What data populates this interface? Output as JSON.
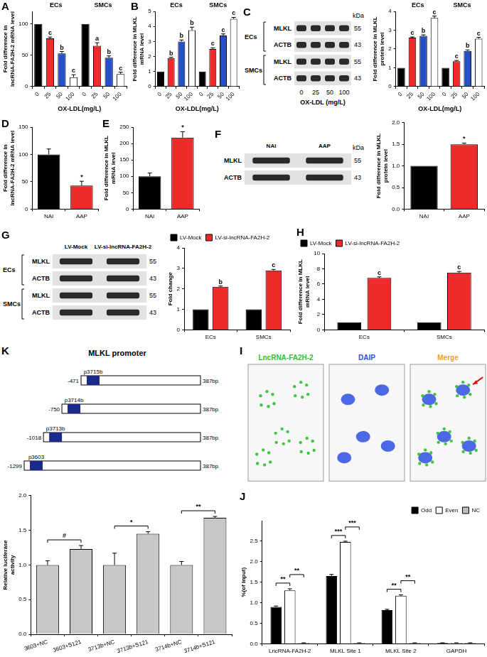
{
  "chart_data": [
    {
      "panel": "A",
      "type": "bar",
      "y_label": "Fold difference in lncRNA-FA2H-2 mRNA level",
      "x_label": "OX-LDL(mg/L)",
      "groups": [
        "ECs",
        "SMCs"
      ],
      "categories": [
        "0",
        "25",
        "50",
        "100",
        "0",
        "25",
        "50",
        "100"
      ],
      "values": [
        100,
        77,
        53,
        15,
        100,
        65,
        46,
        20
      ],
      "errors": [
        0,
        2,
        3,
        4,
        0,
        5,
        3,
        3
      ],
      "significance": [
        null,
        "c",
        "b",
        "c",
        null,
        "a",
        "b",
        "c"
      ],
      "colors": [
        "#000000",
        "#ee2b2b",
        "#2550c8",
        "#ffffff",
        "#000000",
        "#ee2b2b",
        "#2550c8",
        "#ffffff"
      ],
      "ylim": [
        0,
        120
      ],
      "yticks": [
        0,
        50,
        100
      ],
      "grid": false
    },
    {
      "panel": "B",
      "type": "bar",
      "y_label": "Fold difference in MLKL mRNA level",
      "x_label": "OX-LDL(mg/L)",
      "groups": [
        "ECs",
        "SMCs"
      ],
      "categories": [
        "0",
        "25",
        "50",
        "100",
        "0",
        "25",
        "50",
        "100"
      ],
      "values": [
        1,
        1.9,
        3,
        3.75,
        1,
        2.5,
        3.4,
        4.5
      ],
      "errors": [
        0,
        0.05,
        0.1,
        0.2,
        0,
        0.08,
        0.1,
        0.1
      ],
      "significance": [
        null,
        "b",
        "b",
        "b",
        null,
        "c",
        "c",
        "c"
      ],
      "colors": [
        "#000000",
        "#ee2b2b",
        "#2550c8",
        "#ffffff",
        "#000000",
        "#ee2b2b",
        "#2550c8",
        "#ffffff"
      ],
      "ylim": [
        0,
        5
      ],
      "yticks": [
        0,
        1,
        2,
        3,
        4,
        5
      ],
      "grid": false
    },
    {
      "type": "bar",
      "y_label": "Fold difference in MLKL protein level",
      "x_label": "OX-LDL(mg/L)",
      "groups": [
        "ECs",
        "SMCs"
      ],
      "categories": [
        "0",
        "25",
        "50",
        "100",
        "0",
        "25",
        "50",
        "100"
      ],
      "values": [
        1,
        2.6,
        2.7,
        3.65,
        1,
        1.35,
        1.9,
        2.55
      ],
      "errors": [
        0,
        0.04,
        0.05,
        0.1,
        0,
        0.04,
        0.05,
        0.07
      ],
      "significance": [
        null,
        "c",
        "b",
        "c",
        null,
        "c",
        "b",
        "c"
      ],
      "colors": [
        "#000000",
        "#ee2b2b",
        "#2550c8",
        "#ffffff",
        "#000000",
        "#ee2b2b",
        "#2550c8",
        "#ffffff"
      ],
      "ylim": [
        0,
        4
      ],
      "yticks": [
        0,
        1,
        2,
        3,
        4
      ],
      "grid": false
    },
    {
      "panel": "D",
      "type": "bar",
      "y_label": "Fold difference in lncRNA-FA2H-2 mRNA level",
      "categories": [
        "NAI",
        "AAP"
      ],
      "values": [
        100,
        43
      ],
      "errors": [
        10,
        8
      ],
      "significance": [
        null,
        "*"
      ],
      "colors": [
        "#000000",
        "#ee2b2b"
      ],
      "ylim": [
        0,
        150
      ],
      "yticks": [
        0,
        50,
        100,
        150
      ],
      "grid": false
    },
    {
      "panel": "E",
      "type": "bar",
      "y_label": "Fold difference in MLKL mRNA level",
      "categories": [
        "NAI",
        "AAP"
      ],
      "values": [
        100,
        218
      ],
      "errors": [
        10,
        18
      ],
      "significance": [
        null,
        "*"
      ],
      "colors": [
        "#000000",
        "#ee2b2b"
      ],
      "ylim": [
        0,
        250
      ],
      "yticks": [
        0,
        50,
        100,
        150,
        200,
        250
      ],
      "grid": false
    },
    {
      "type": "bar",
      "y_label": "Fold difference in MLKL protein level",
      "categories": [
        "NAI",
        "AAP"
      ],
      "values": [
        1,
        1.5
      ],
      "errors": [
        0,
        0.03
      ],
      "significance": [
        null,
        "*"
      ],
      "colors": [
        "#000000",
        "#ee2b2b"
      ],
      "ylim": [
        0,
        2
      ],
      "yticks": [
        {
          "value": 0,
          "label": "0.0"
        },
        {
          "value": 0.5,
          "label": "0.5"
        },
        {
          "value": 1,
          "label": "1.0"
        },
        {
          "value": 1.5,
          "label": "1.5"
        },
        {
          "value": 2,
          "label": "2.0"
        }
      ],
      "grid": false
    },
    {
      "type": "bar",
      "y_label": "Fold change",
      "categories": [
        "ECs",
        "SMCs"
      ],
      "series": [
        {
          "name": "LV-Mock",
          "color": "#000000",
          "values": [
            1,
            1
          ],
          "errors": [
            0,
            0
          ],
          "significance": [
            null,
            null
          ]
        },
        {
          "name": "LV-si-lncRNA-FA2H-2",
          "color": "#ee2b2b",
          "values": [
            2.1,
            2.9
          ],
          "errors": [
            0.04,
            0.05
          ],
          "significance": [
            "b",
            "c"
          ]
        }
      ],
      "legend": "top-left",
      "ylim": [
        0,
        4
      ],
      "yticks": [
        0,
        1,
        2,
        3,
        4
      ],
      "grid": false
    },
    {
      "panel": "H",
      "type": "bar",
      "y_label": "Fold difference in MLKL mRNA level",
      "categories": [
        "ECs",
        "SMCs"
      ],
      "series": [
        {
          "name": "LV-Mock",
          "color": "#000000",
          "values": [
            1,
            1
          ],
          "errors": [
            0,
            0
          ],
          "significance": [
            null,
            null
          ]
        },
        {
          "name": "LV-si-lncRNA-FA2H-2",
          "color": "#ee2b2b",
          "values": [
            6.8,
            7.5
          ],
          "errors": [
            0.15,
            0.15
          ],
          "significance": [
            "c",
            "c"
          ]
        }
      ],
      "legend": "top-left",
      "ylim": [
        0,
        10
      ],
      "yticks": [
        0,
        2,
        4,
        6,
        8,
        10
      ],
      "grid": false
    },
    {
      "type": "bar",
      "y_label": "Relative luciferase activity",
      "categories": [
        "3603+NC",
        "3603+S121",
        "3713b+NC",
        "3713b+S121",
        "3714b+NC",
        "3714b+S121"
      ],
      "values": [
        1,
        1.23,
        1,
        1.45,
        1,
        1.68
      ],
      "errors": [
        0.06,
        0.05,
        0.17,
        0.03,
        0.05,
        0.02
      ],
      "color": "#c8c8c8",
      "brackets": [
        {
          "between": [
            "3603+NC",
            "3603+S121"
          ],
          "label": "#"
        },
        {
          "between": [
            "3713b+NC",
            "3713b+S121"
          ],
          "label": "*"
        },
        {
          "between": [
            "3714b+NC",
            "3714b+S121"
          ],
          "label": "**"
        }
      ],
      "ylim": [
        0,
        2
      ],
      "yticks": [
        {
          "value": 0,
          "label": "0.0"
        },
        {
          "value": 0.5,
          "label": "0.5"
        },
        {
          "value": 1,
          "label": "1.0"
        },
        {
          "value": 1.5,
          "label": "1.5"
        },
        {
          "value": 2,
          "label": "2.0"
        }
      ],
      "grid": false
    },
    {
      "panel": "J",
      "type": "bar",
      "y_label": "%(of input)",
      "categories": [
        "LncRNA-FA2H-2",
        "MLKL Site 1",
        "MLKL Site 2",
        "GAPDH"
      ],
      "series": [
        {
          "name": "Odd",
          "color": "#000000",
          "values": [
            0.9,
            1.65,
            0.82,
            0.02
          ],
          "errors": [
            0.02,
            0.04,
            0.02,
            0.005
          ]
        },
        {
          "name": "Even",
          "color": "#ffffff",
          "values": [
            1.3,
            2.48,
            1.17,
            0.02
          ],
          "errors": [
            0.04,
            0.02,
            0.02,
            0.005
          ]
        },
        {
          "name": "NC",
          "color": "#bdbdbd",
          "values": [
            0.02,
            0.02,
            0.02,
            0.02
          ],
          "errors": [
            0.005,
            0.005,
            0.005,
            0.005
          ]
        }
      ],
      "brackets": [
        {
          "category": "LncRNA-FA2H-2",
          "between": [
            "Odd",
            "Even"
          ],
          "label": "**"
        },
        {
          "category": "LncRNA-FA2H-2",
          "between": [
            "Even",
            "NC"
          ],
          "label": "**"
        },
        {
          "category": "MLKL Site 1",
          "between": [
            "Odd",
            "Even"
          ],
          "label": "***"
        },
        {
          "category": "MLKL Site 1",
          "between": [
            "Even",
            "NC"
          ],
          "label": "***"
        },
        {
          "category": "MLKL Site 2",
          "between": [
            "Odd",
            "Even"
          ],
          "label": "**"
        },
        {
          "category": "MLKL Site 2",
          "between": [
            "Even",
            "NC"
          ],
          "label": "**"
        }
      ],
      "legend": "top-right",
      "ylim": [
        0,
        3
      ],
      "yticks": [
        {
          "value": 0,
          "label": "0.0"
        },
        {
          "value": 0.5,
          "label": "0.5"
        },
        {
          "value": 1,
          "label": "1.0"
        },
        {
          "value": 1.5,
          "label": "1.5"
        },
        {
          "value": 2,
          "label": "2.0"
        },
        {
          "value": 2.5,
          "label": "2.5"
        }
      ],
      "grid": false
    }
  ],
  "blots": [
    {
      "panel": "C",
      "unit": "kDa",
      "lanes": [
        "0",
        "25",
        "50",
        "100"
      ],
      "lane_title": "OX-LDL (mg/L)",
      "rows": [
        {
          "group": "ECs",
          "band": "MLKL",
          "kda": 55
        },
        {
          "group": "ECs",
          "band": "ACTB",
          "kda": 43
        },
        {
          "group": "SMCs",
          "band": "MLKL",
          "kda": 55
        },
        {
          "group": "SMCs",
          "band": "ACTB",
          "kda": 43
        }
      ]
    },
    {
      "panel": "F",
      "unit": "kDa",
      "lanes": [
        "NAI",
        "AAP"
      ],
      "rows": [
        {
          "band": "MLKL",
          "kda": 55
        },
        {
          "band": "ACTB",
          "kda": 43
        }
      ]
    },
    {
      "panel": "G",
      "lanes": [
        "LV-Mock",
        "LV-si-lncRNA-FA2H-2"
      ],
      "rows": [
        {
          "group": "ECs",
          "band": "MLKL",
          "kda": 55
        },
        {
          "group": "ECs",
          "band": "ACTB",
          "kda": 43
        },
        {
          "group": "SMCs",
          "band": "MLKL",
          "kda": 55
        },
        {
          "group": "SMCs",
          "band": "ACTB",
          "kda": 43
        }
      ]
    }
  ],
  "promoter_diagram": {
    "panel": "K",
    "title": "MLKL promoter",
    "constructs": [
      {
        "name": "p3715b",
        "start": -471,
        "end_label": "387bp"
      },
      {
        "name": "p3714b",
        "start": -750,
        "end_label": "387bp"
      },
      {
        "name": "p3713b",
        "start": -1018,
        "end_label": "387bp"
      },
      {
        "name": "p3603",
        "start": -1299,
        "end_label": "387bp"
      }
    ]
  },
  "microscopy": {
    "panel": "I",
    "channels": [
      "LncRNA-FA2H-2",
      "DAIP",
      "Merge"
    ],
    "colors": [
      "#2fbf2f",
      "#2f4fe0",
      "#f0a030"
    ]
  }
}
